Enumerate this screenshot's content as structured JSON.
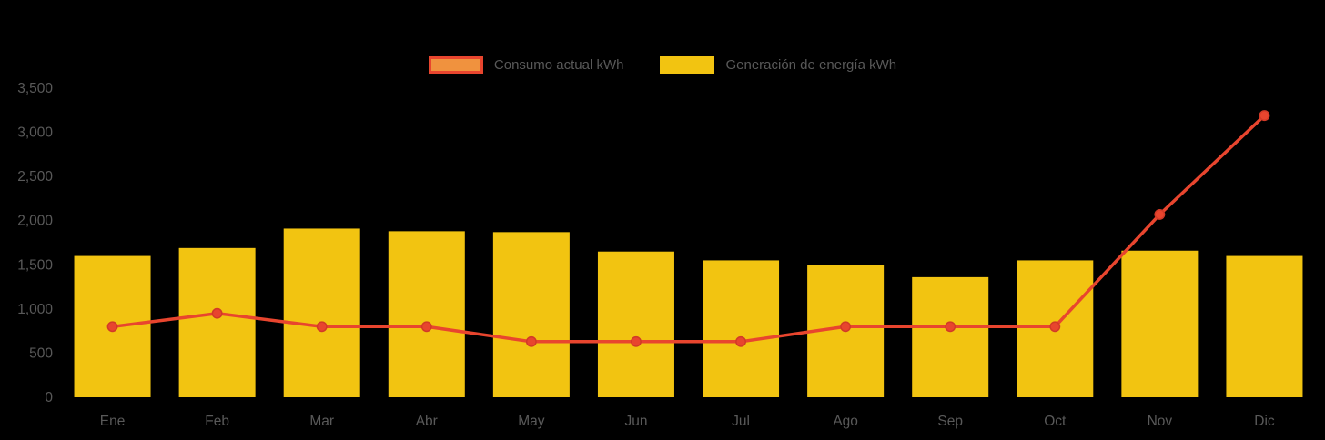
{
  "chart_data": {
    "type": "bar",
    "title": "",
    "categories": [
      "Ene",
      "Feb",
      "Mar",
      "Abr",
      "May",
      "Jun",
      "Jul",
      "Ago",
      "Sep",
      "Oct",
      "Nov",
      "Dic"
    ],
    "series": [
      {
        "name": "Consumo actual kWh",
        "type": "line",
        "color": "#E8452E",
        "point_stroke": "#D23A27",
        "swatch_fill": "#F0923E",
        "swatch_border": "#E8452E",
        "values": [
          800,
          950,
          800,
          800,
          630,
          630,
          630,
          800,
          800,
          800,
          2070,
          3190
        ]
      },
      {
        "name": "Generación de energía kWh",
        "type": "bar",
        "color": "#F2C411",
        "swatch_fill": "#F2C411",
        "swatch_border": "#F2C411",
        "values": [
          1600,
          1690,
          1910,
          1880,
          1870,
          1650,
          1550,
          1500,
          1360,
          1550,
          1660,
          1600
        ]
      }
    ],
    "xlabel": "",
    "ylabel": "",
    "ylim": [
      0,
      3500
    ],
    "ytick_step": 500,
    "ytick_labels": [
      "0",
      "500",
      "1,000",
      "1,500",
      "2,000",
      "2,500",
      "3,000",
      "3,500"
    ],
    "legend_position": "top",
    "grid": false,
    "background": "#000000",
    "text_color": "#595959"
  }
}
